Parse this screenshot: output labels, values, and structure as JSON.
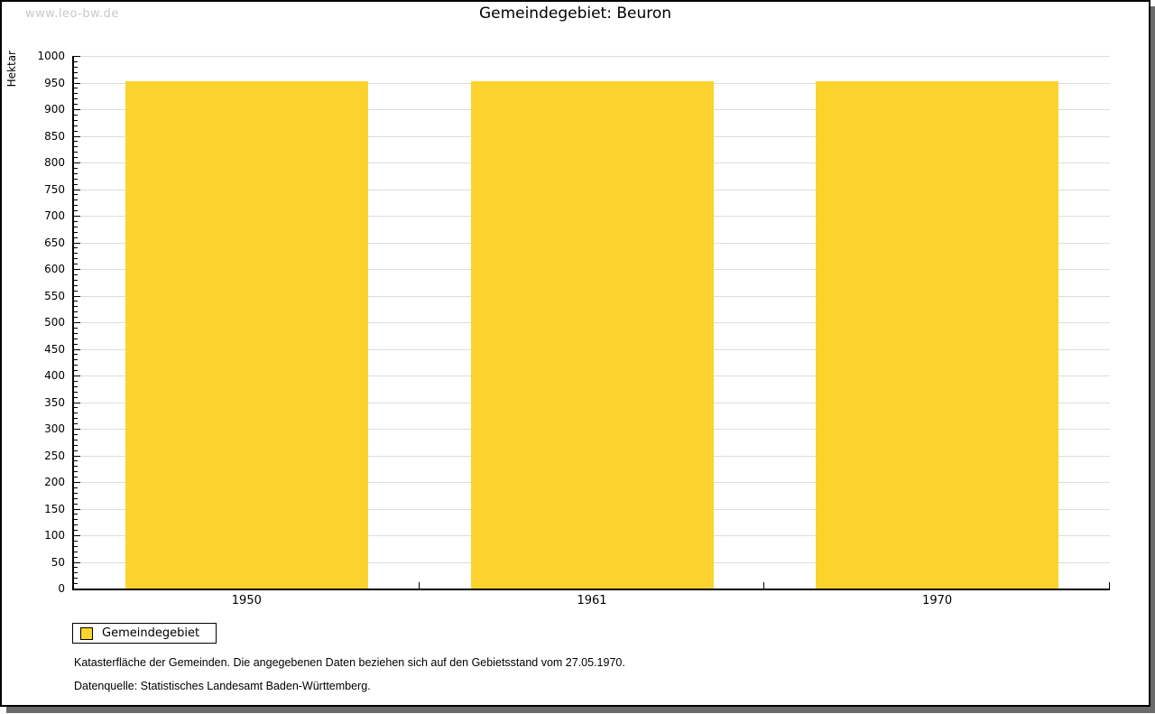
{
  "watermark": "www.leo-bw.de",
  "title": "Gemeindegebiet: Beuron",
  "legend": {
    "label": "Gemeindegebiet",
    "swatch_color": "#fcd32d"
  },
  "footnotes": [
    "Katasterfläche der Gemeinden. Die angegebenen Daten beziehen sich auf den Gebietsstand vom 27.05.1970.",
    "Datenquelle: Statistisches Landesamt Baden-Württemberg."
  ],
  "chart_data": {
    "type": "bar",
    "title": "Gemeindegebiet: Beuron",
    "categories": [
      "1950",
      "1961",
      "1970"
    ],
    "series": [
      {
        "name": "Gemeindegebiet",
        "values": [
          952,
          952,
          952
        ]
      }
    ],
    "xlabel": "",
    "ylabel": "Hektar",
    "ylim": [
      0,
      1000
    ],
    "ytick_step": 50,
    "yminor_step": 10,
    "grid": true,
    "legend_position": "bottom-left",
    "bar_color": "#fcd32d",
    "axis_color": "#000000",
    "grid_color": "#dddddd"
  }
}
